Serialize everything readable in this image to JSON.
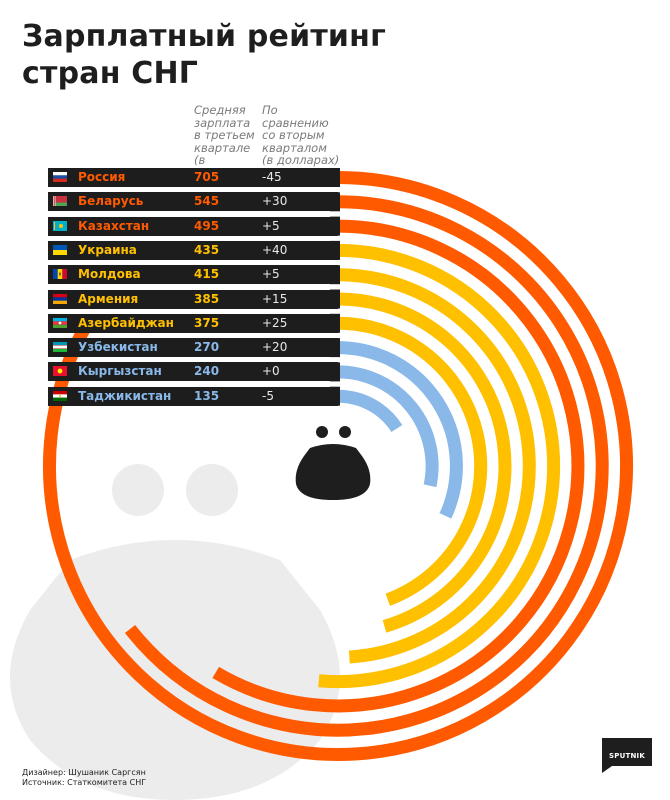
{
  "title_line1": "Зарплатный рейтинг",
  "title_line2": "стран СНГ",
  "column_headers": {
    "salary": [
      "Средняя",
      "зарплата",
      "в третьем",
      "квартале",
      "(в долларах)"
    ],
    "change": [
      "По сравнению",
      "со вторым",
      "кварталом",
      "(в долларах)"
    ]
  },
  "colors": {
    "orange": "#ff5a00",
    "yellow": "#ffc000",
    "blue": "#8ab8e8",
    "row_bg": "#1d1d1d",
    "watermark": "#ececec",
    "purse": "#1e1e1e"
  },
  "icons": {
    "center": "purse-icon",
    "watermark": "purse-watermark-icon",
    "logo": "sputnik-logo-icon"
  },
  "chart_data": {
    "type": "bar",
    "layout": "radial",
    "categories": [
      "Россия",
      "Беларусь",
      "Казахстан",
      "Украина",
      "Молдова",
      "Армения",
      "Азербайджан",
      "Узбекистан",
      "Кыргызстан",
      "Таджикистан"
    ],
    "values": [
      705,
      545,
      495,
      435,
      415,
      385,
      375,
      270,
      240,
      135
    ],
    "changes": [
      "-45",
      "+30",
      "+5",
      "+40",
      "+5",
      "+15",
      "+25",
      "+20",
      "+0",
      "-5"
    ],
    "groups": [
      "orange",
      "orange",
      "orange",
      "yellow",
      "yellow",
      "yellow",
      "yellow",
      "blue",
      "blue",
      "blue"
    ],
    "flags": [
      "ru",
      "by",
      "kz",
      "ua",
      "md",
      "am",
      "az",
      "uz",
      "kg",
      "tj"
    ],
    "ylim": [
      0,
      705
    ]
  },
  "credits": {
    "designer": "Дизайнер: Шушаник Саргсян",
    "source": "Источник: Статкомитета СНГ"
  },
  "logo_text": "SPUTNIK"
}
